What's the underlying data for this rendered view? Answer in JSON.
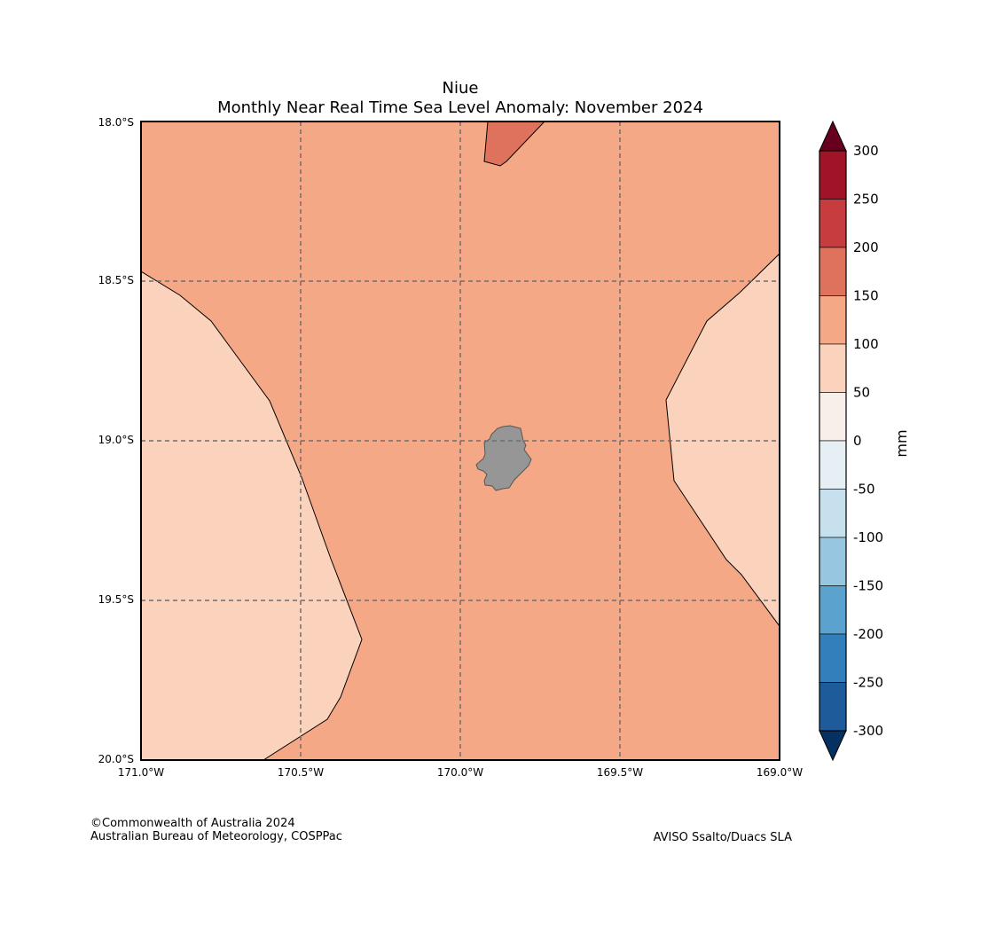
{
  "title": {
    "line1": "Niue",
    "line2": "Monthly Near Real Time Sea Level Anomaly: November 2024"
  },
  "map": {
    "lat_labels": [
      "18.0°S",
      "18.5°S",
      "19.0°S",
      "19.5°S",
      "20.0°S"
    ],
    "lon_labels": [
      "171.0°W",
      "170.5°W",
      "170.0°W",
      "169.5°W",
      "169.0°W"
    ],
    "lat_range": [
      -20.0,
      -18.0
    ],
    "lon_range": [
      -171.0,
      -169.0
    ],
    "gridlines": "dashed",
    "background_band": "100 to 150 mm",
    "colors": {
      "band_50_100": "#fbd3bd",
      "band_100_150": "#f4a886",
      "band_150_200": "#de725d",
      "land": "#969696",
      "grid": "#6e6e6e"
    }
  },
  "colorbar": {
    "label": "mm",
    "ticks": [
      "300",
      "250",
      "200",
      "150",
      "100",
      "50",
      "0",
      "-50",
      "-100",
      "-150",
      "-200",
      "-250",
      "-300"
    ],
    "over_color": "#67001f",
    "under_color": "#053061",
    "band_colors": [
      "#a11428",
      "#c73d3f",
      "#de725d",
      "#f4a886",
      "#fbd3bd",
      "#f8efeb",
      "#e6eff3",
      "#c6e0ee",
      "#96c6e0",
      "#5ba3ce",
      "#337fbb",
      "#1d5b9a"
    ]
  },
  "footer": {
    "copyright": "©Commonwealth of Australia 2024",
    "org": "Australian Bureau of Meteorology, COSPPac",
    "source": "AVISO Ssalto/Duacs SLA"
  }
}
